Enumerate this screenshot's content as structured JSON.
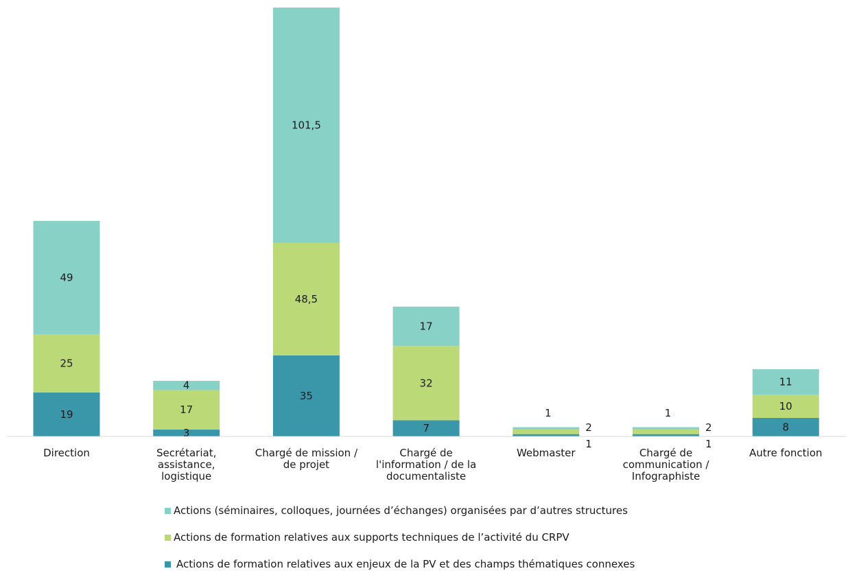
{
  "chart_data": {
    "type": "bar",
    "stacked": true,
    "categories": [
      [
        "Direction"
      ],
      [
        "Secrétariat,",
        "assistance,",
        "logistique"
      ],
      [
        "Chargé de mission /",
        "de projet"
      ],
      [
        "Chargé de",
        "l'information / de la",
        "documentaliste"
      ],
      [
        "Webmaster"
      ],
      [
        "Chargé de",
        "communication /",
        "Infographiste"
      ],
      [
        "Autre fonction"
      ]
    ],
    "series": [
      {
        "name": "Actions de formation relatives aux enjeux de la PV et des champs thématiques connexes",
        "color": "#3a97a9",
        "values": [
          19,
          3,
          35,
          7,
          1,
          1,
          8
        ],
        "labels": [
          "19",
          "3",
          "35",
          "7",
          "1",
          "1",
          "8"
        ]
      },
      {
        "name": "Actions de formation relatives aux supports techniques de l’activité du CRPV",
        "color": "#bcd977",
        "values": [
          25,
          17,
          48.5,
          32,
          2,
          2,
          10
        ],
        "labels": [
          "25",
          "17",
          "48,5",
          "32",
          "2",
          "2",
          "10"
        ]
      },
      {
        "name": "Actions (séminaires, colloques, journées d’échanges) organisées par d’autres structures",
        "color": "#88d1c7",
        "values": [
          49,
          4,
          101.5,
          17,
          1,
          1,
          11
        ],
        "labels": [
          "49",
          "4",
          "101,5",
          "17",
          "1",
          "1",
          "11"
        ]
      }
    ],
    "legend_order": [
      2,
      1,
      0
    ],
    "legend_position": "bottom",
    "axis": {
      "y_visible": false,
      "grid": false,
      "baseline": true
    },
    "ylim": [
      0,
      185
    ]
  }
}
